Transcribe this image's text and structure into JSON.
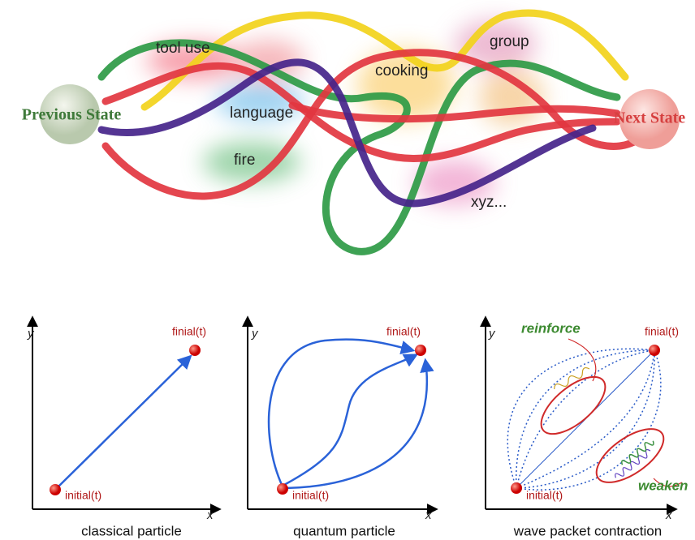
{
  "top": {
    "start": "Previous State",
    "end": "Next State",
    "labels": [
      "tool use",
      "language",
      "cooking",
      "group",
      "fire",
      "xyz..."
    ]
  },
  "panels": [
    {
      "y_axis": "y",
      "x_axis": "x",
      "start": "initial(t)",
      "end": "finial(t)",
      "caption": "classical particle"
    },
    {
      "y_axis": "y",
      "x_axis": "x",
      "start": "initial(t)",
      "end": "finial(t)",
      "caption": "quantum particle"
    },
    {
      "y_axis": "y",
      "x_axis": "x",
      "start": "initial(t)",
      "end": "finial(t)",
      "caption": "wave packet contraction",
      "annotations": [
        "reinforce",
        "weaken"
      ]
    }
  ]
}
